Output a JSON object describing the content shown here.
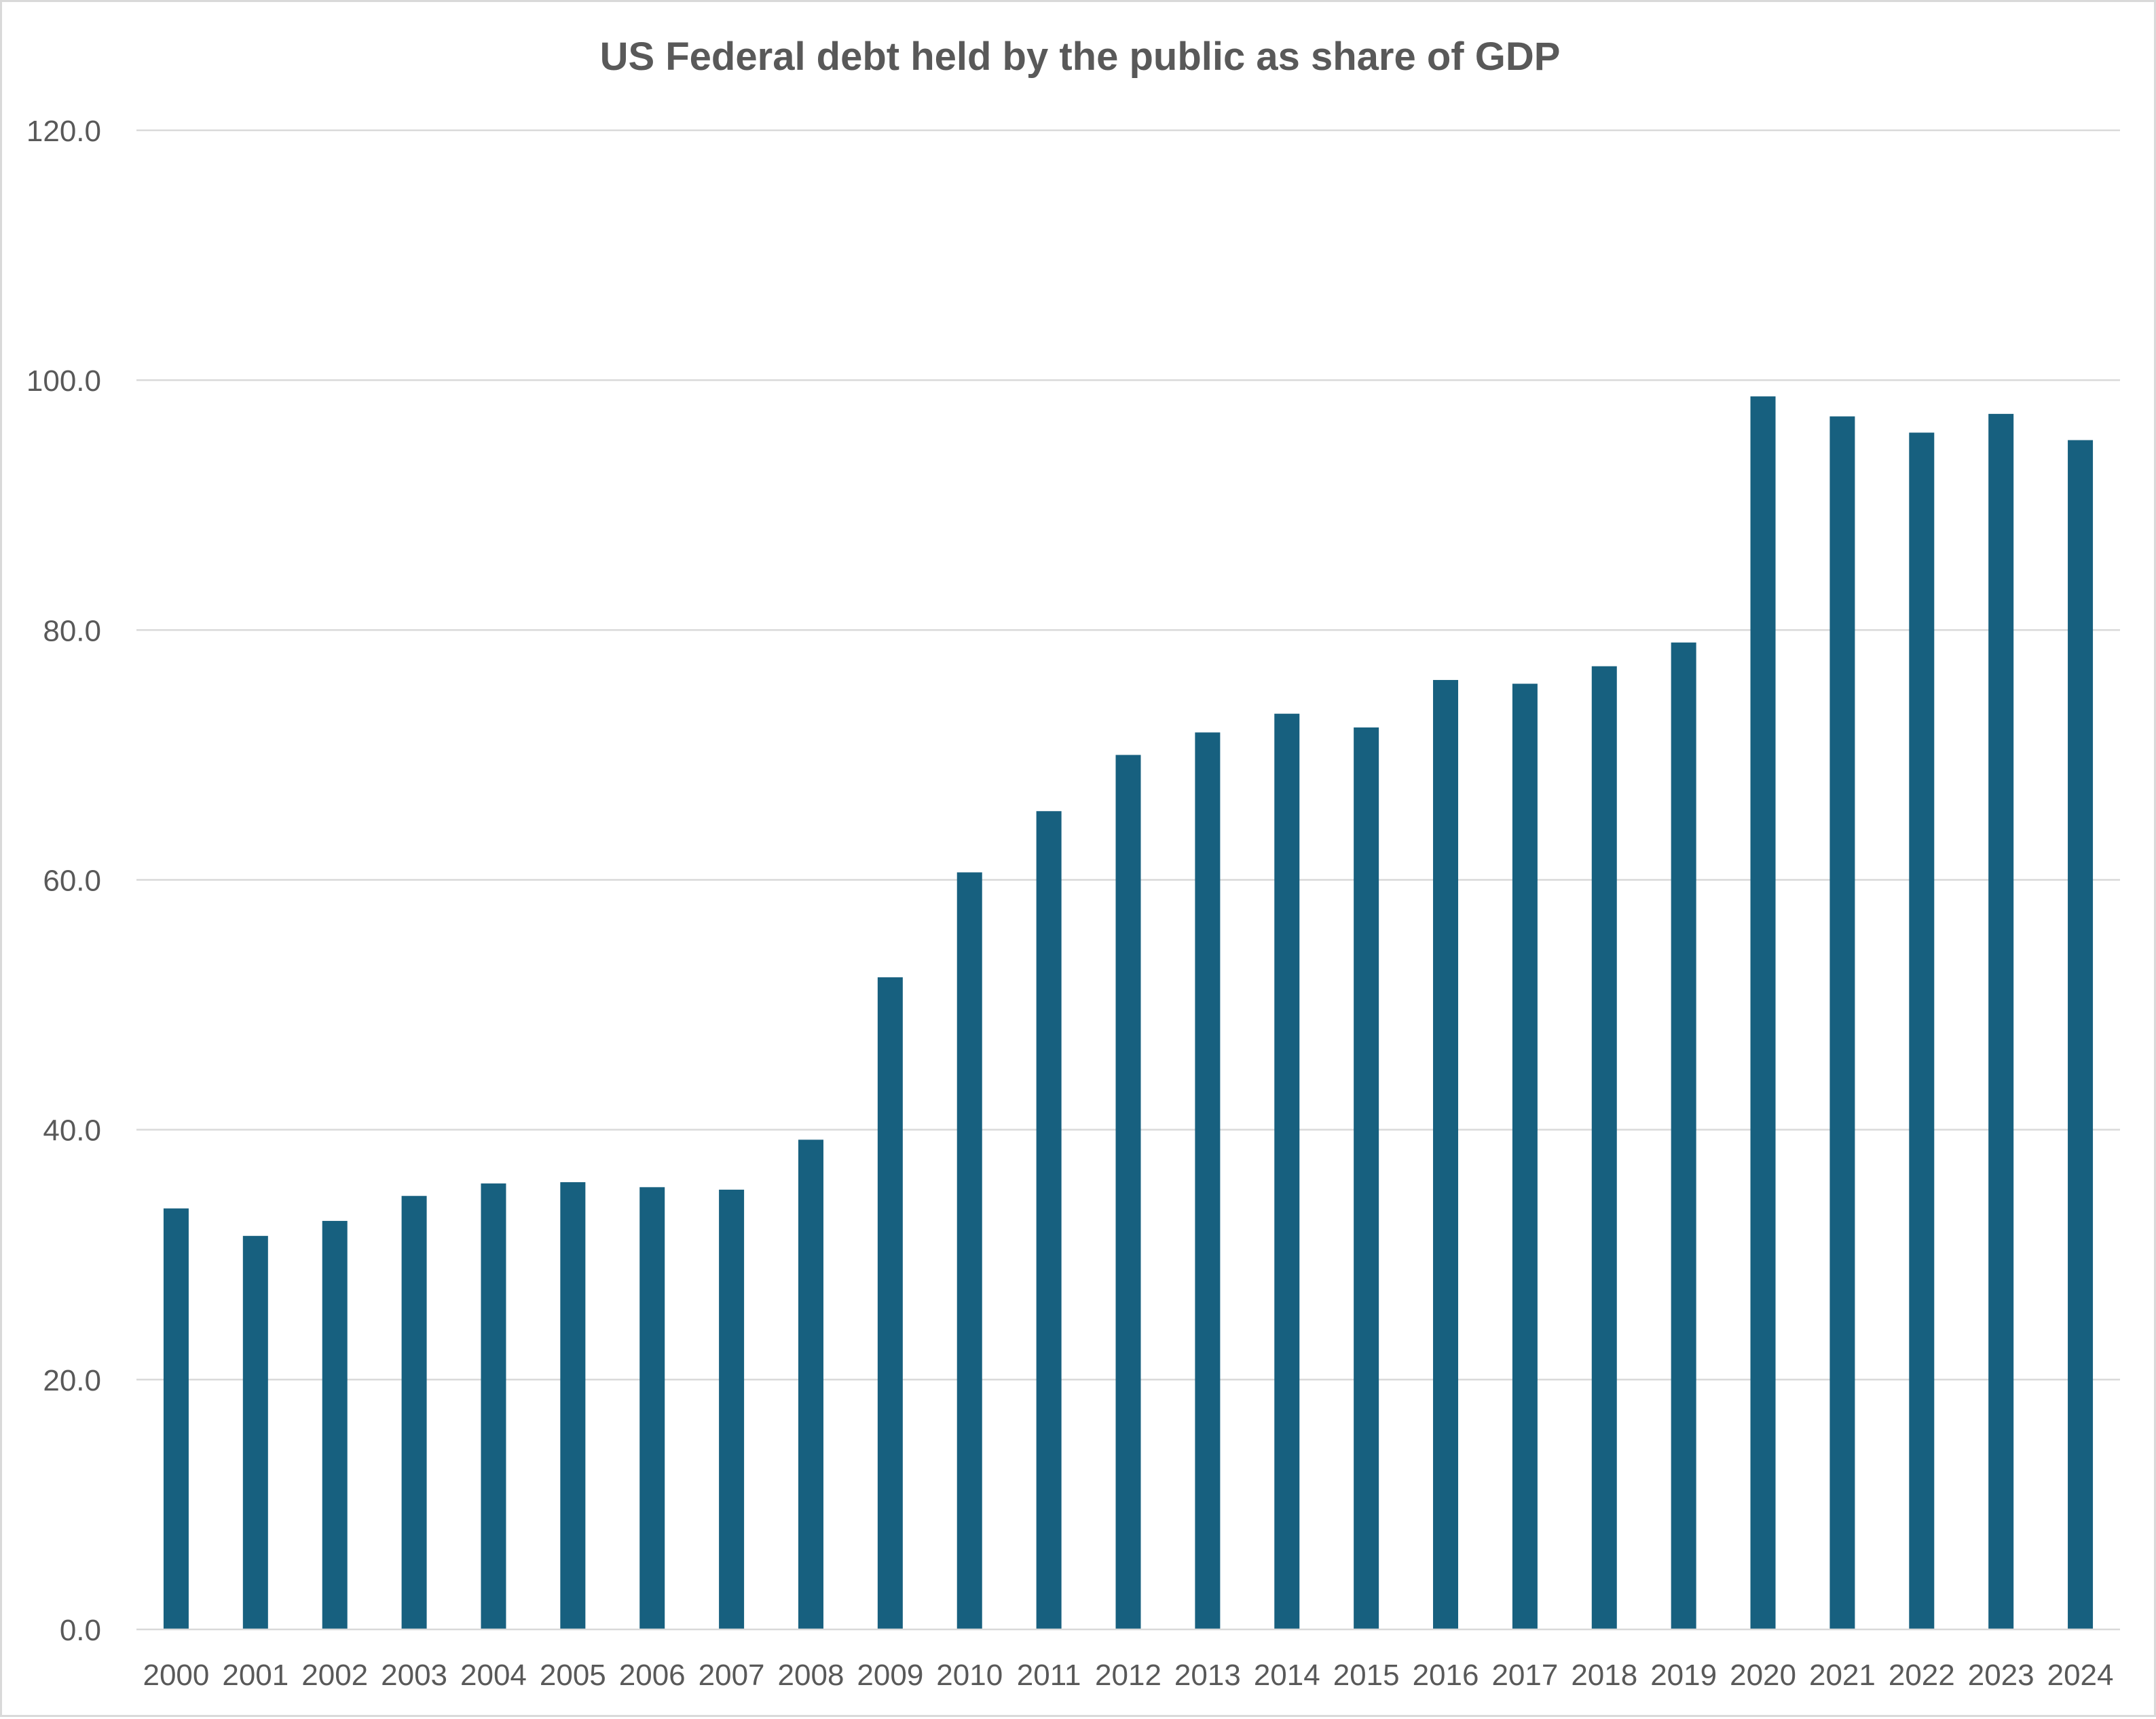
{
  "chart_data": {
    "type": "bar",
    "title": "US Federal debt held by the public as share of GDP",
    "xlabel": "",
    "ylabel": "",
    "ylim": [
      0,
      120
    ],
    "y_ticks": [
      "0.0",
      "20.0",
      "40.0",
      "60.0",
      "80.0",
      "100.0",
      "120.0"
    ],
    "y_tick_values": [
      0,
      20,
      40,
      60,
      80,
      100,
      120
    ],
    "grid": true,
    "legend": "none",
    "bar_color": "#17607f",
    "categories": [
      "2000",
      "2001",
      "2002",
      "2003",
      "2004",
      "2005",
      "2006",
      "2007",
      "2008",
      "2009",
      "2010",
      "2011",
      "2012",
      "2013",
      "2014",
      "2015",
      "2016",
      "2017",
      "2018",
      "2019",
      "2020",
      "2021",
      "2022",
      "2023",
      "2024"
    ],
    "values": [
      33.7,
      31.5,
      32.7,
      34.7,
      35.7,
      35.8,
      35.4,
      35.2,
      39.2,
      52.2,
      60.6,
      65.5,
      70.0,
      71.8,
      73.3,
      72.2,
      76.0,
      75.7,
      77.1,
      79.0,
      98.7,
      97.1,
      95.8,
      97.3,
      95.2
    ]
  }
}
